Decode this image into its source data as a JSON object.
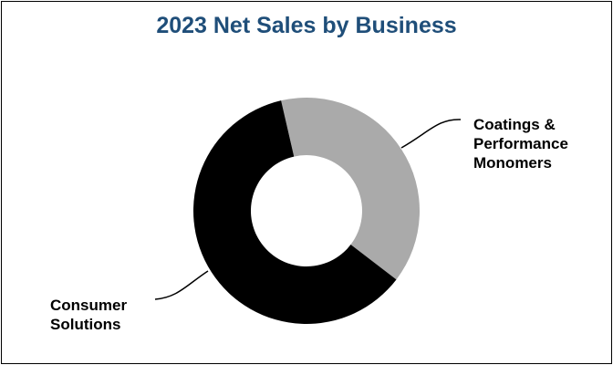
{
  "chart_data": {
    "type": "pie",
    "subtype": "donut",
    "title": "2023 Net Sales by Business",
    "slices": [
      {
        "label": "Coatings & Performance Monomers",
        "value": 39,
        "color": "#aaaaaa"
      },
      {
        "label": "Consumer Solutions",
        "value": 61,
        "color": "#000000"
      }
    ],
    "label_lines": [
      "Coatings &",
      "Performance",
      "Monomers"
    ],
    "label2_lines": [
      "Consumer",
      "Solutions"
    ],
    "title_color": "#1f4e79",
    "legend": "none"
  }
}
